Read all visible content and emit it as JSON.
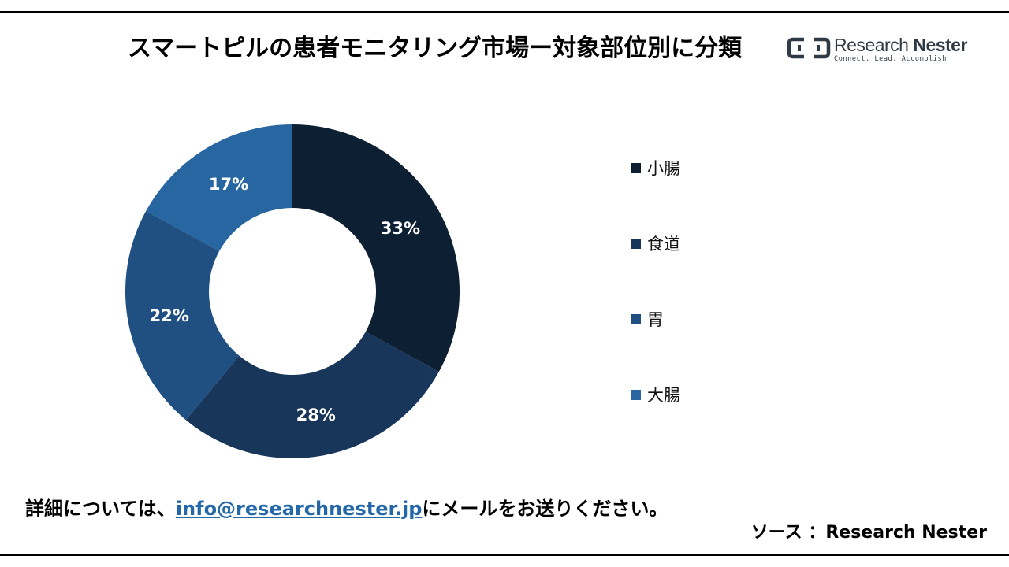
{
  "title": "スマートピルの患者モニタリング市場ー対象部位別に分類",
  "logo": {
    "name_light": "Research ",
    "name_bold": "Nester",
    "tagline": "Connect. Lead. Accomplish"
  },
  "chart_data": {
    "type": "pie",
    "donut": true,
    "categories": [
      "小腸",
      "食道",
      "胃",
      "大腸"
    ],
    "values": [
      33,
      28,
      22,
      17
    ],
    "labels": [
      "33%",
      "28%",
      "22%",
      "17%"
    ],
    "colors": [
      "#0d1f33",
      "#17365a",
      "#1f5081",
      "#2766a0"
    ],
    "legend": "right"
  },
  "footer": {
    "contact_prefix": "詳細については、",
    "email": "info@researchnester.jp",
    "contact_suffix": "にメールをお送りください。",
    "source": "ソース ：Research Nester"
  }
}
